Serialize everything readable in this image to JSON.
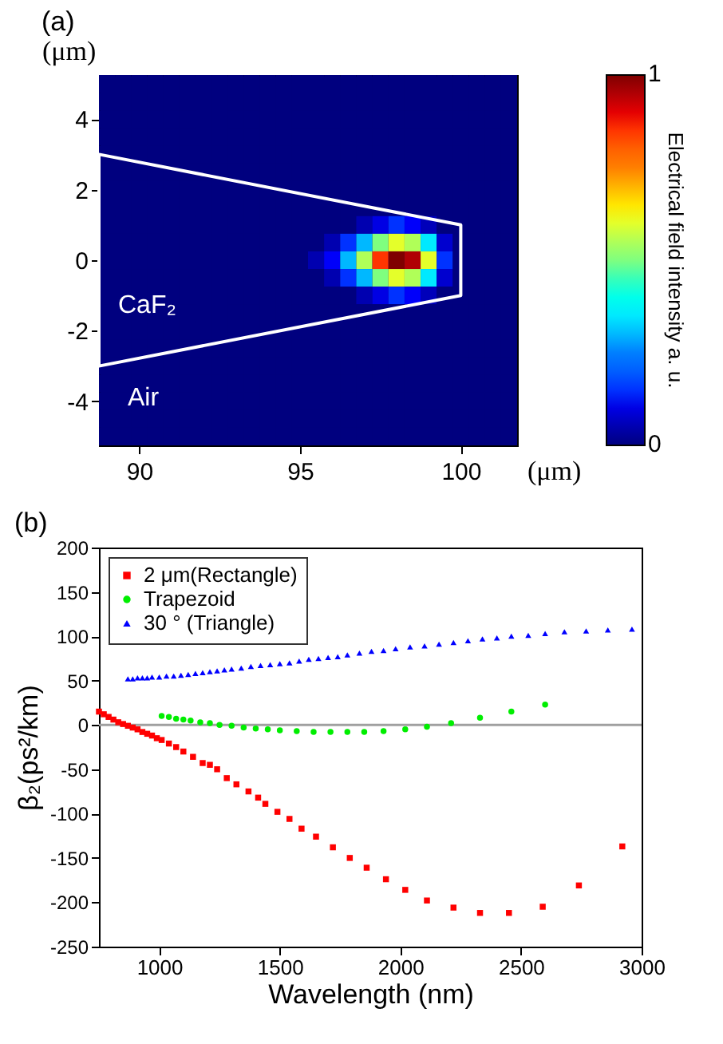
{
  "chart_data": [
    {
      "type": "heatmap",
      "title": "(a)",
      "xlabel": "(μm)",
      "ylabel": "(μm)",
      "clabel": "Electrical field intensity  a. u.",
      "categories": [
        null,
        null,
        "90",
        null,
        null,
        null,
        null,
        null,
        null,
        null,
        null,
        null,
        "95",
        null,
        null,
        null,
        null,
        null,
        null,
        null,
        null,
        null,
        "100",
        null,
        null,
        null
      ],
      "y_categories": [
        null,
        null,
        "4",
        null,
        null,
        null,
        "2",
        null,
        null,
        null,
        "0",
        null,
        null,
        null,
        "-2",
        null,
        null,
        null,
        "-4",
        null,
        null
      ],
      "clim": [
        0,
        1
      ],
      "cticks": [
        0,
        1
      ],
      "cells": [
        [
          0,
          0,
          0,
          0,
          0,
          0,
          0,
          0,
          0,
          0,
          0,
          0,
          0,
          0,
          0,
          0,
          0,
          0,
          0,
          0,
          0,
          0,
          0,
          0,
          0,
          0
        ],
        [
          0,
          0,
          0,
          0,
          0,
          0,
          0,
          0,
          0,
          0,
          0,
          0,
          0,
          0,
          0,
          0,
          0,
          0,
          0,
          0,
          0,
          0,
          0,
          0,
          0,
          0
        ],
        [
          0,
          0,
          0,
          0,
          0,
          0,
          0,
          0,
          0,
          0,
          0,
          0,
          0,
          0,
          0,
          0,
          0,
          0,
          0,
          0,
          0,
          0,
          0,
          0,
          0,
          0
        ],
        [
          0,
          0,
          0,
          0,
          0,
          0,
          0,
          0,
          0,
          0,
          0,
          0,
          0,
          0,
          0,
          0,
          0,
          0,
          0,
          0,
          0,
          0,
          0,
          0,
          0,
          0
        ],
        [
          0,
          0,
          0,
          0,
          0,
          0,
          0,
          0,
          0,
          0,
          0,
          0,
          0,
          0,
          0,
          0,
          0,
          0,
          0,
          0,
          0,
          0,
          0,
          0,
          0,
          0
        ],
        [
          0,
          0,
          0,
          0,
          0,
          0,
          0,
          0,
          0,
          0,
          0,
          0,
          0,
          0,
          0,
          0,
          0,
          0,
          0,
          0,
          0,
          0,
          0,
          0,
          0,
          0
        ],
        [
          0,
          0,
          0,
          0,
          0,
          0,
          0,
          0,
          0,
          0,
          0,
          0,
          0,
          0,
          0,
          0,
          0,
          0,
          0,
          0,
          0,
          0,
          0,
          0,
          0,
          0
        ],
        [
          0,
          0,
          0,
          0,
          0,
          0,
          0,
          0,
          0,
          0,
          0,
          0,
          0,
          0,
          0,
          0,
          0,
          0,
          0,
          0,
          0,
          0,
          0,
          0,
          0,
          0
        ],
        [
          0,
          0,
          0,
          0,
          0,
          0,
          0,
          0,
          0,
          0,
          0,
          0,
          0,
          0,
          0,
          0,
          0.05,
          0.1,
          0.15,
          0.12,
          0.06,
          0,
          0,
          0,
          0,
          0
        ],
        [
          0,
          0,
          0,
          0,
          0,
          0,
          0,
          0,
          0,
          0,
          0,
          0,
          0,
          0,
          0.05,
          0.15,
          0.3,
          0.5,
          0.6,
          0.55,
          0.35,
          0.08,
          0,
          0,
          0,
          0
        ],
        [
          0,
          0,
          0,
          0,
          0,
          0,
          0,
          0,
          0,
          0,
          0,
          0,
          0,
          0.05,
          0.12,
          0.3,
          0.55,
          0.85,
          1,
          0.95,
          0.6,
          0.15,
          0,
          0,
          0,
          0
        ],
        [
          0,
          0,
          0,
          0,
          0,
          0,
          0,
          0,
          0,
          0,
          0,
          0,
          0,
          0,
          0.05,
          0.15,
          0.3,
          0.5,
          0.6,
          0.55,
          0.35,
          0.08,
          0,
          0,
          0,
          0
        ],
        [
          0,
          0,
          0,
          0,
          0,
          0,
          0,
          0,
          0,
          0,
          0,
          0,
          0,
          0,
          0,
          0,
          0.05,
          0.1,
          0.15,
          0.12,
          0.06,
          0,
          0,
          0,
          0,
          0
        ],
        [
          0,
          0,
          0,
          0,
          0,
          0,
          0,
          0,
          0,
          0,
          0,
          0,
          0,
          0,
          0,
          0,
          0,
          0,
          0,
          0,
          0,
          0,
          0,
          0,
          0,
          0
        ],
        [
          0,
          0,
          0,
          0,
          0,
          0,
          0,
          0,
          0,
          0,
          0,
          0,
          0,
          0,
          0,
          0,
          0,
          0,
          0,
          0,
          0,
          0,
          0,
          0,
          0,
          0
        ],
        [
          0,
          0,
          0,
          0,
          0,
          0,
          0,
          0,
          0,
          0,
          0,
          0,
          0,
          0,
          0,
          0,
          0,
          0,
          0,
          0,
          0,
          0,
          0,
          0,
          0,
          0
        ],
        [
          0,
          0,
          0,
          0,
          0,
          0,
          0,
          0,
          0,
          0,
          0,
          0,
          0,
          0,
          0,
          0,
          0,
          0,
          0,
          0,
          0,
          0,
          0,
          0,
          0,
          0
        ],
        [
          0,
          0,
          0,
          0,
          0,
          0,
          0,
          0,
          0,
          0,
          0,
          0,
          0,
          0,
          0,
          0,
          0,
          0,
          0,
          0,
          0,
          0,
          0,
          0,
          0,
          0
        ],
        [
          0,
          0,
          0,
          0,
          0,
          0,
          0,
          0,
          0,
          0,
          0,
          0,
          0,
          0,
          0,
          0,
          0,
          0,
          0,
          0,
          0,
          0,
          0,
          0,
          0,
          0
        ],
        [
          0,
          0,
          0,
          0,
          0,
          0,
          0,
          0,
          0,
          0,
          0,
          0,
          0,
          0,
          0,
          0,
          0,
          0,
          0,
          0,
          0,
          0,
          0,
          0,
          0,
          0
        ],
        [
          0,
          0,
          0,
          0,
          0,
          0,
          0,
          0,
          0,
          0,
          0,
          0,
          0,
          0,
          0,
          0,
          0,
          0,
          0,
          0,
          0,
          0,
          0,
          0,
          0,
          0
        ]
      ],
      "annotations": [
        "CaF₂",
        "Air"
      ]
    },
    {
      "type": "scatter",
      "title": "(b)",
      "xlabel": "Wavelength (nm)",
      "ylabel": "β₂(ps²/km)",
      "xlim": [
        750,
        3000
      ],
      "xticks": [
        1000,
        1500,
        2000,
        2500,
        3000
      ],
      "ylim": [
        -250,
        200
      ],
      "yticks": [
        -250,
        -200,
        -150,
        -100,
        -50,
        0,
        50,
        100,
        150,
        200
      ],
      "grid": false,
      "legend": "top left",
      "ref_lines": [
        {
          "axis": "y",
          "value": 0,
          "color": "#a0a0a0"
        }
      ],
      "series": [
        {
          "name": "2 μm(Rectangle)",
          "color": "#ff0000",
          "marker": "square",
          "x": [
            750,
            770,
            790,
            810,
            830,
            850,
            870,
            890,
            910,
            930,
            950,
            970,
            990,
            1010,
            1040,
            1070,
            1100,
            1140,
            1180,
            1210,
            1240,
            1280,
            1320,
            1370,
            1410,
            1440,
            1490,
            1540,
            1590,
            1650,
            1720,
            1790,
            1860,
            1940,
            2020,
            2110,
            2220,
            2330,
            2450,
            2590,
            2740,
            2920
          ],
          "values": [
            15,
            12,
            9,
            6,
            3,
            1,
            -1,
            -3,
            -5,
            -8,
            -10,
            -12,
            -15,
            -17,
            -21,
            -25,
            -30,
            -36,
            -43,
            -45,
            -50,
            -60,
            -67,
            -75,
            -82,
            -89,
            -98,
            -106,
            -117,
            -126,
            -138,
            -150,
            -161,
            -174,
            -186,
            -198,
            -206,
            -212,
            -212,
            -205,
            -181,
            -137
          ]
        },
        {
          "name": "Trapezoid",
          "color": "#00ee00",
          "marker": "circle",
          "x": [
            1010,
            1040,
            1070,
            1100,
            1130,
            1170,
            1210,
            1250,
            1300,
            1350,
            1400,
            1450,
            1500,
            1570,
            1640,
            1710,
            1780,
            1850,
            1930,
            2020,
            2110,
            2210,
            2330,
            2460,
            2600
          ],
          "values": [
            10,
            9,
            7,
            6,
            5,
            3,
            2,
            0,
            -1,
            -3,
            -4,
            -5,
            -6,
            -7,
            -8,
            -8,
            -8,
            -8,
            -7,
            -5,
            -2,
            2,
            8,
            15,
            23
          ]
        },
        {
          "name": "30 °  (Triangle)",
          "color": "#0000ff",
          "marker": "triangle",
          "x": [
            870,
            890,
            910,
            930,
            950,
            970,
            1000,
            1030,
            1060,
            1090,
            1120,
            1150,
            1180,
            1210,
            1240,
            1270,
            1300,
            1340,
            1380,
            1420,
            1460,
            1500,
            1540,
            1580,
            1620,
            1660,
            1700,
            1740,
            1780,
            1830,
            1880,
            1930,
            1980,
            2040,
            2100,
            2160,
            2220,
            2280,
            2340,
            2400,
            2460,
            2530,
            2600,
            2680,
            2770,
            2860,
            2960
          ],
          "values": [
            52,
            52,
            53,
            53,
            53,
            54,
            54,
            55,
            55,
            56,
            57,
            58,
            59,
            60,
            61,
            62,
            63,
            64,
            66,
            67,
            68,
            69,
            70,
            72,
            74,
            75,
            76,
            77,
            79,
            81,
            83,
            84,
            86,
            88,
            89,
            91,
            93,
            95,
            97,
            98,
            100,
            101,
            103,
            105,
            106,
            107,
            108
          ]
        }
      ]
    }
  ]
}
